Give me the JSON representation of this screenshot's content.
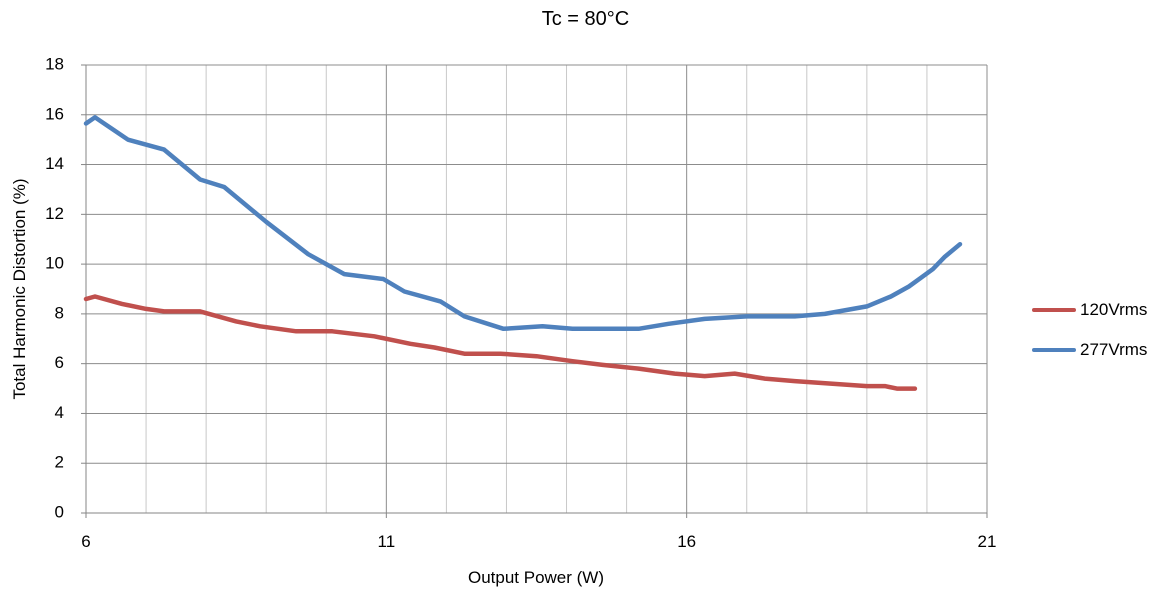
{
  "chart_data": {
    "type": "line",
    "title": "Tc = 80°C",
    "xlabel": "Output Power (W)",
    "ylabel": "Total Harmonic Distortion (%)",
    "xlim": [
      6,
      21
    ],
    "ylim": [
      0,
      18
    ],
    "x_ticks": [
      "6",
      "11",
      "16",
      "21"
    ],
    "y_ticks": [
      "0",
      "2",
      "4",
      "6",
      "8",
      "10",
      "12",
      "14",
      "16",
      "18"
    ],
    "grid": true,
    "legend_position": "right",
    "series": [
      {
        "name": "120Vrms",
        "color": "#c0504d",
        "points": [
          [
            6.0,
            8.6
          ],
          [
            6.15,
            8.7
          ],
          [
            6.6,
            8.4
          ],
          [
            7.0,
            8.2
          ],
          [
            7.3,
            8.1
          ],
          [
            7.9,
            8.1
          ],
          [
            8.5,
            7.7
          ],
          [
            8.9,
            7.5
          ],
          [
            9.5,
            7.3
          ],
          [
            10.1,
            7.3
          ],
          [
            10.8,
            7.1
          ],
          [
            11.4,
            6.8
          ],
          [
            11.8,
            6.65
          ],
          [
            12.3,
            6.4
          ],
          [
            12.9,
            6.4
          ],
          [
            13.5,
            6.3
          ],
          [
            14.1,
            6.1
          ],
          [
            14.6,
            5.95
          ],
          [
            15.2,
            5.8
          ],
          [
            15.8,
            5.6
          ],
          [
            16.3,
            5.5
          ],
          [
            16.8,
            5.6
          ],
          [
            17.3,
            5.4
          ],
          [
            17.8,
            5.3
          ],
          [
            18.4,
            5.2
          ],
          [
            19.0,
            5.1
          ],
          [
            19.3,
            5.1
          ],
          [
            19.5,
            5.0
          ],
          [
            19.8,
            5.0
          ]
        ]
      },
      {
        "name": "277Vrms",
        "color": "#4f81bd",
        "points": [
          [
            6.0,
            15.65
          ],
          [
            6.15,
            15.9
          ],
          [
            6.7,
            15.0
          ],
          [
            7.3,
            14.6
          ],
          [
            7.9,
            13.4
          ],
          [
            8.3,
            13.1
          ],
          [
            9.0,
            11.7
          ],
          [
            9.7,
            10.4
          ],
          [
            10.3,
            9.6
          ],
          [
            10.95,
            9.4
          ],
          [
            11.3,
            8.9
          ],
          [
            11.9,
            8.5
          ],
          [
            12.3,
            7.9
          ],
          [
            12.95,
            7.4
          ],
          [
            13.6,
            7.5
          ],
          [
            14.1,
            7.4
          ],
          [
            15.2,
            7.4
          ],
          [
            15.7,
            7.6
          ],
          [
            16.3,
            7.8
          ],
          [
            17.0,
            7.9
          ],
          [
            17.8,
            7.9
          ],
          [
            18.3,
            8.0
          ],
          [
            19.0,
            8.3
          ],
          [
            19.4,
            8.7
          ],
          [
            19.7,
            9.1
          ],
          [
            19.9,
            9.45
          ],
          [
            20.1,
            9.8
          ],
          [
            20.3,
            10.3
          ],
          [
            20.55,
            10.8
          ]
        ]
      }
    ]
  }
}
